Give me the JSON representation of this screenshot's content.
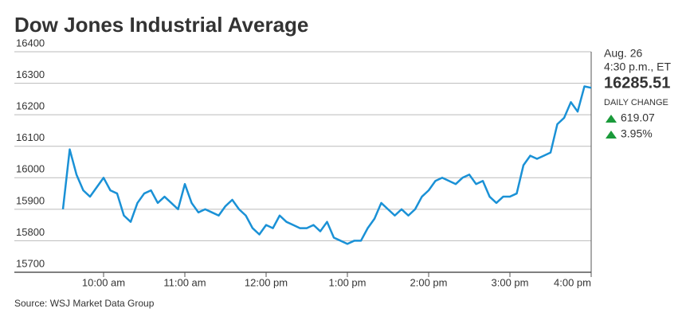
{
  "chart_data": {
    "type": "line",
    "title": "Dow Jones Industrial Average",
    "x": [
      "9:30 am",
      "9:35 am",
      "9:40 am",
      "9:45 am",
      "9:50 am",
      "9:55 am",
      "10:00 am",
      "10:05 am",
      "10:10 am",
      "10:15 am",
      "10:20 am",
      "10:25 am",
      "10:30 am",
      "10:35 am",
      "10:40 am",
      "10:45 am",
      "10:50 am",
      "10:55 am",
      "11:00 am",
      "11:05 am",
      "11:10 am",
      "11:15 am",
      "11:20 am",
      "11:25 am",
      "11:30 am",
      "11:35 am",
      "11:40 am",
      "11:45 am",
      "11:50 am",
      "11:55 am",
      "12:00 pm",
      "12:05 pm",
      "12:10 pm",
      "12:15 pm",
      "12:20 pm",
      "12:25 pm",
      "12:30 pm",
      "12:35 pm",
      "12:40 pm",
      "12:45 pm",
      "12:50 pm",
      "12:55 pm",
      "1:00 pm",
      "1:05 pm",
      "1:10 pm",
      "1:15 pm",
      "1:20 pm",
      "1:25 pm",
      "1:30 pm",
      "1:35 pm",
      "1:40 pm",
      "1:45 pm",
      "1:50 pm",
      "1:55 pm",
      "2:00 pm",
      "2:05 pm",
      "2:10 pm",
      "2:15 pm",
      "2:20 pm",
      "2:25 pm",
      "2:30 pm",
      "2:35 pm",
      "2:40 pm",
      "2:45 pm",
      "2:50 pm",
      "2:55 pm",
      "3:00 pm",
      "3:05 pm",
      "3:10 pm",
      "3:15 pm",
      "3:20 pm",
      "3:25 pm",
      "3:30 pm",
      "3:35 pm",
      "3:40 pm",
      "3:45 pm",
      "3:50 pm",
      "3:55 pm",
      "4:00 pm"
    ],
    "values": [
      15900,
      16090,
      16010,
      15960,
      15940,
      15970,
      16000,
      15960,
      15950,
      15880,
      15860,
      15920,
      15950,
      15960,
      15920,
      15940,
      15920,
      15900,
      15980,
      15920,
      15890,
      15900,
      15890,
      15880,
      15910,
      15930,
      15900,
      15880,
      15840,
      15820,
      15850,
      15840,
      15880,
      15860,
      15850,
      15840,
      15840,
      15850,
      15830,
      15860,
      15810,
      15800,
      15790,
      15800,
      15800,
      15840,
      15870,
      15920,
      15900,
      15880,
      15900,
      15880,
      15900,
      15940,
      15960,
      15990,
      16000,
      15990,
      15980,
      16000,
      16010,
      15980,
      15990,
      15940,
      15920,
      15940,
      15940,
      15950,
      16040,
      16070,
      16060,
      16070,
      16080,
      16170,
      16190,
      16240,
      16210,
      16290,
      16285.51
    ],
    "color": "#1a91d6",
    "xlim": [
      "9:30 am",
      "4:00 pm"
    ],
    "xticks": [
      "10:00 am",
      "11:00 am",
      "12:00 pm",
      "1:00 pm",
      "2:00 pm",
      "3:00 pm",
      "4:00 pm"
    ],
    "ylim": [
      15700,
      16400
    ],
    "yticks": [
      15700,
      15800,
      15900,
      16000,
      16100,
      16200,
      16300,
      16400
    ],
    "grid": true,
    "source": "Source: WSJ Market Data Group"
  },
  "quote": {
    "date": "Aug. 26",
    "time": "4:30 p.m., ET",
    "price": 16285.51,
    "change_heading": "DAILY CHANGE",
    "change": 619.07,
    "change_pct": "3.95%"
  }
}
